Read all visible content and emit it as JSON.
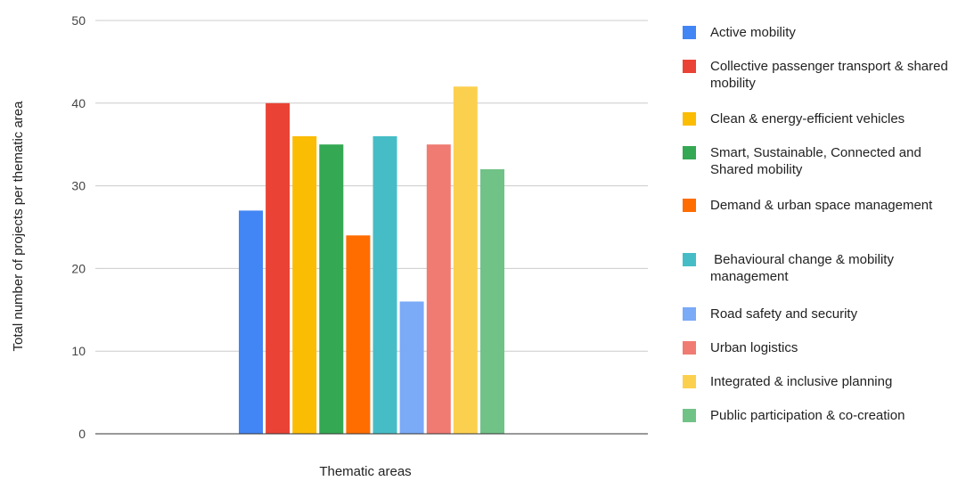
{
  "chart_data": {
    "type": "bar",
    "xlabel": "Thematic areas",
    "ylabel": "Total number of projects per thematic area",
    "ylim": [
      0,
      50
    ],
    "yticks": [
      0,
      10,
      20,
      30,
      40,
      50
    ],
    "grid": true,
    "legend_position": "right",
    "series": [
      {
        "name": "Active mobility",
        "value": 27,
        "color": "#4285F4"
      },
      {
        "name": "Collective passenger transport & shared mobility",
        "value": 40,
        "color": "#EA4335"
      },
      {
        "name": "Clean & energy-efficient vehicles",
        "value": 36,
        "color": "#FBBC04"
      },
      {
        "name": "Smart, Sustainable, Connected and Shared mobility",
        "value": 35,
        "color": "#34A853"
      },
      {
        "name": "Demand & urban space management",
        "value": 24,
        "color": "#FF6D01"
      },
      {
        "name": " Behavioural change & mobility management",
        "value": 36,
        "color": "#46BDC6"
      },
      {
        "name": "Road safety and security",
        "value": 16,
        "color": "#7BAAF7"
      },
      {
        "name": "Urban logistics",
        "value": 35,
        "color": "#F07B72"
      },
      {
        "name": "Integrated & inclusive planning",
        "value": 42,
        "color": "#FCD04F"
      },
      {
        "name": "Public participation & co-creation",
        "value": 32,
        "color": "#71C287"
      }
    ]
  }
}
